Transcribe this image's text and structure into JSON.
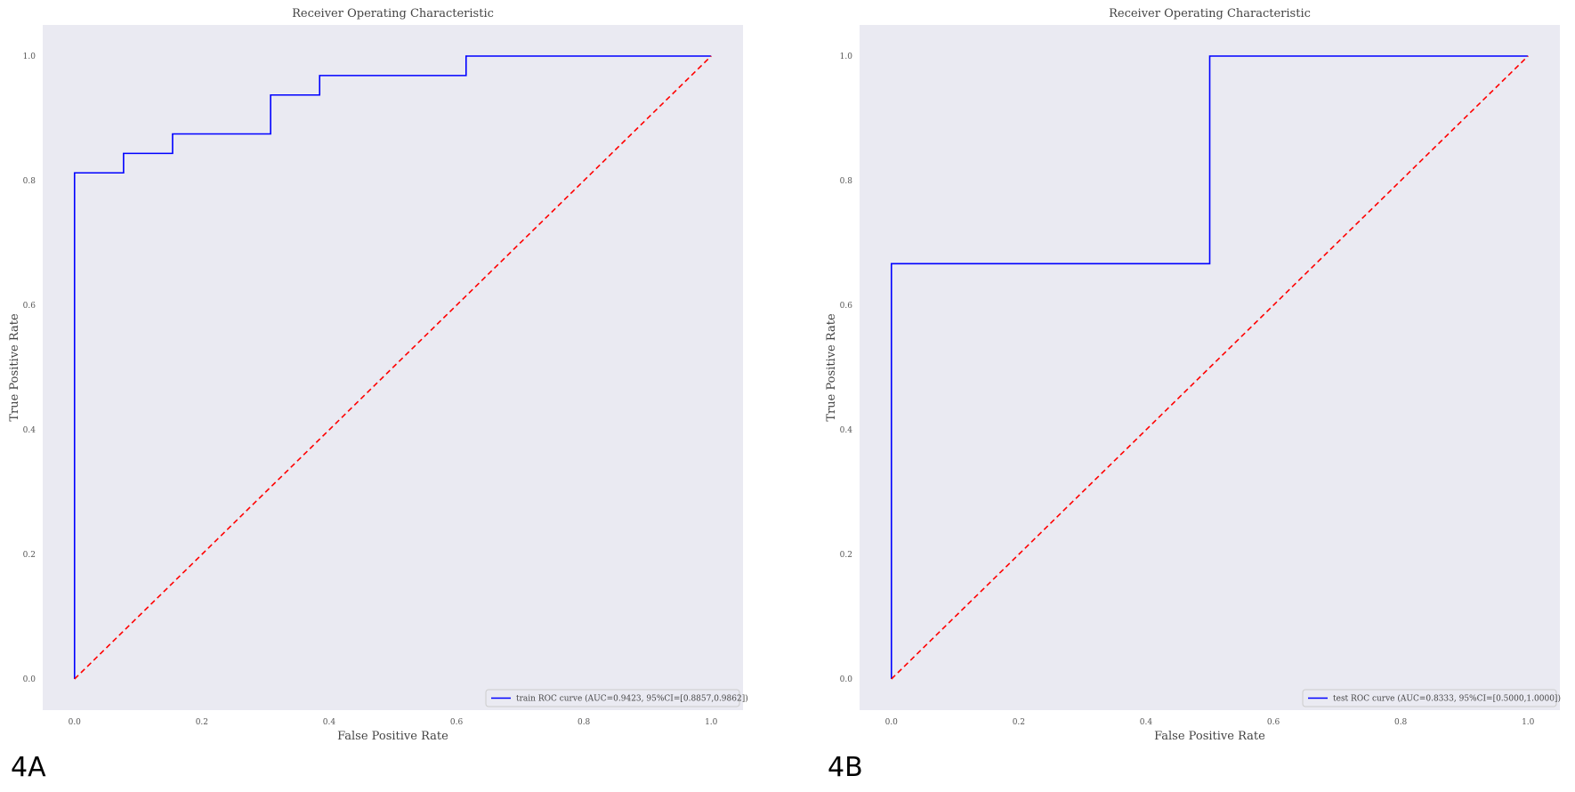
{
  "chart_data": [
    {
      "type": "line",
      "panel_label": "4A",
      "title": "Receiver Operating Characteristic",
      "xlabel": "False Positive Rate",
      "ylabel": "True Positive Rate",
      "xlim": [
        -0.05,
        1.05
      ],
      "ylim": [
        -0.05,
        1.05
      ],
      "xticks": [
        "0.0",
        "0.2",
        "0.4",
        "0.6",
        "0.8",
        "1.0"
      ],
      "yticks": [
        "0.0",
        "0.2",
        "0.4",
        "0.6",
        "0.8",
        "1.0"
      ],
      "grid": false,
      "legend_position": "lower-right",
      "background_color": "#eaeaf2",
      "series": [
        {
          "name": "train ROC curve (AUC=0.9423, 95%CI=[0.8857,0.9862])",
          "color": "#0000ff",
          "style": "solid",
          "x": [
            0.0,
            0.0,
            0.077,
            0.077,
            0.154,
            0.154,
            0.308,
            0.308,
            0.385,
            0.385,
            0.615,
            0.615,
            1.0
          ],
          "y": [
            0.0,
            0.8125,
            0.8125,
            0.84375,
            0.84375,
            0.875,
            0.875,
            0.9375,
            0.9375,
            0.96875,
            0.96875,
            1.0,
            1.0
          ]
        },
        {
          "name": "",
          "color": "#ff0000",
          "style": "dashed",
          "x": [
            0.0,
            1.0
          ],
          "y": [
            0.0,
            1.0
          ]
        }
      ]
    },
    {
      "type": "line",
      "panel_label": "4B",
      "title": "Receiver Operating Characteristic",
      "xlabel": "False Positive Rate",
      "ylabel": "True Positive Rate",
      "xlim": [
        -0.05,
        1.05
      ],
      "ylim": [
        -0.05,
        1.05
      ],
      "xticks": [
        "0.0",
        "0.2",
        "0.4",
        "0.6",
        "0.8",
        "1.0"
      ],
      "yticks": [
        "0.0",
        "0.2",
        "0.4",
        "0.6",
        "0.8",
        "1.0"
      ],
      "grid": false,
      "legend_position": "lower-right",
      "background_color": "#eaeaf2",
      "series": [
        {
          "name": "test ROC curve (AUC=0.8333, 95%CI=[0.5000,1.0000])",
          "color": "#0000ff",
          "style": "solid",
          "x": [
            0.0,
            0.0,
            0.5,
            0.5,
            1.0
          ],
          "y": [
            0.0,
            0.6667,
            0.6667,
            1.0,
            1.0
          ]
        },
        {
          "name": "",
          "color": "#ff0000",
          "style": "dashed",
          "x": [
            0.0,
            1.0
          ],
          "y": [
            0.0,
            1.0
          ]
        }
      ]
    }
  ]
}
